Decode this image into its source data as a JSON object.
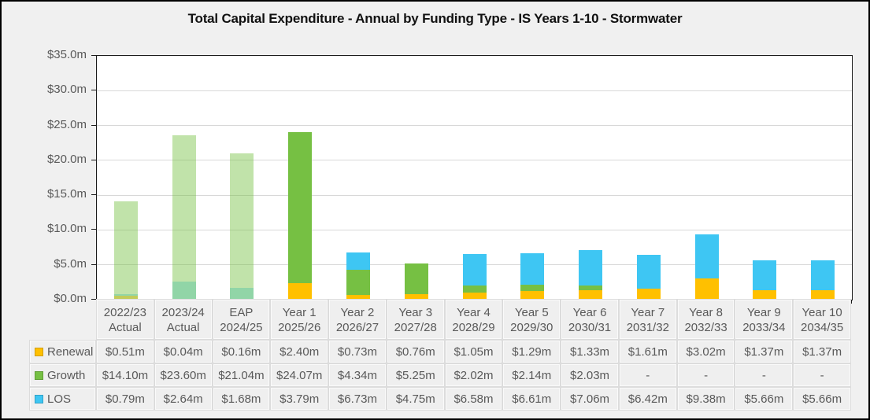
{
  "window": {
    "background_color": "#f0f0f0",
    "border_color": "#000000"
  },
  "chart": {
    "title": "Total Capital Expenditure - Annual by Funding Type - IS Years 1-10 - Stormwater",
    "y_axis_labels": [
      "$35.0m",
      "$30.0m",
      "$25.0m",
      "$20.0m",
      "$15.0m",
      "$10.0m",
      "$5.0m",
      "$0.0m"
    ]
  },
  "chart_data": {
    "type": "bar",
    "stacked": true,
    "title": "Total Capital Expenditure - Annual by Funding Type - IS Years 1-10 - Stormwater",
    "xlabel": "",
    "ylabel": "",
    "ylim": [
      0,
      35
    ],
    "y_step": 5,
    "y_tick_labels": [
      "$35.0m",
      "$30.0m",
      "$25.0m",
      "$20.0m",
      "$15.0m",
      "$10.0m",
      "$5.0m",
      "$0.0m"
    ],
    "grid": true,
    "legend_position": "data-table-left",
    "categories": [
      "2022/23 Actual",
      "2023/24 Actual",
      "EAP 2024/25",
      "Year 1 2025/26",
      "Year 2 2026/27",
      "Year 3 2027/28",
      "Year 4 2028/29",
      "Year 5 2029/30",
      "Year 6 2030/31",
      "Year 7 2031/32",
      "Year 8 2032/33",
      "Year 9 2033/34",
      "Year 10 2034/35"
    ],
    "category_labels_2line": [
      [
        "2022/23",
        "Actual"
      ],
      [
        "2023/24",
        "Actual"
      ],
      [
        "EAP",
        "2024/25"
      ],
      [
        "Year 1",
        "2025/26"
      ],
      [
        "Year 2",
        "2026/27"
      ],
      [
        "Year 3",
        "2027/28"
      ],
      [
        "Year 4",
        "2028/29"
      ],
      [
        "Year 5",
        "2029/30"
      ],
      [
        "Year 6",
        "2030/31"
      ],
      [
        "Year 7",
        "2031/32"
      ],
      [
        "Year 8",
        "2032/33"
      ],
      [
        "Year 9",
        "2033/34"
      ],
      [
        "Year 10",
        "2034/35"
      ]
    ],
    "series": [
      {
        "name": "Renewal",
        "color": "#FFC000",
        "values": [
          0.51,
          0.04,
          0.16,
          2.4,
          0.73,
          0.76,
          1.05,
          1.29,
          1.33,
          1.61,
          3.02,
          1.37,
          1.37
        ],
        "display": [
          "$0.51m",
          "$0.04m",
          "$0.16m",
          "$2.40m",
          "$0.73m",
          "$0.76m",
          "$1.05m",
          "$1.29m",
          "$1.33m",
          "$1.61m",
          "$3.02m",
          "$1.37m",
          "$1.37m"
        ]
      },
      {
        "name": "Growth",
        "color": "#76C043",
        "values": [
          14.1,
          23.6,
          21.04,
          24.07,
          4.34,
          5.25,
          2.02,
          2.14,
          2.03,
          0,
          0,
          0,
          0
        ],
        "display": [
          "$14.10m",
          "$23.60m",
          "$21.04m",
          "$24.07m",
          "$4.34m",
          "$5.25m",
          "$2.02m",
          "$2.14m",
          "$2.03m",
          "-",
          "-",
          "-",
          "-"
        ]
      },
      {
        "name": "LOS",
        "color": "#3EC6F3",
        "values": [
          0.79,
          2.64,
          1.68,
          3.79,
          6.73,
          4.75,
          6.58,
          6.61,
          7.06,
          6.42,
          9.38,
          5.66,
          5.66
        ],
        "display": [
          "$0.79m",
          "$2.64m",
          "$1.68m",
          "$3.79m",
          "$6.73m",
          "$4.75m",
          "$6.58m",
          "$6.61m",
          "$7.06m",
          "$6.42m",
          "$9.38m",
          "$5.66m",
          "$5.66m"
        ]
      }
    ],
    "stack_order_bottom_to_top": [
      "LOS",
      "Growth",
      "Renewal"
    ],
    "faded_category_indexes": [
      0,
      1,
      2
    ],
    "faded_opacity": 0.45
  }
}
